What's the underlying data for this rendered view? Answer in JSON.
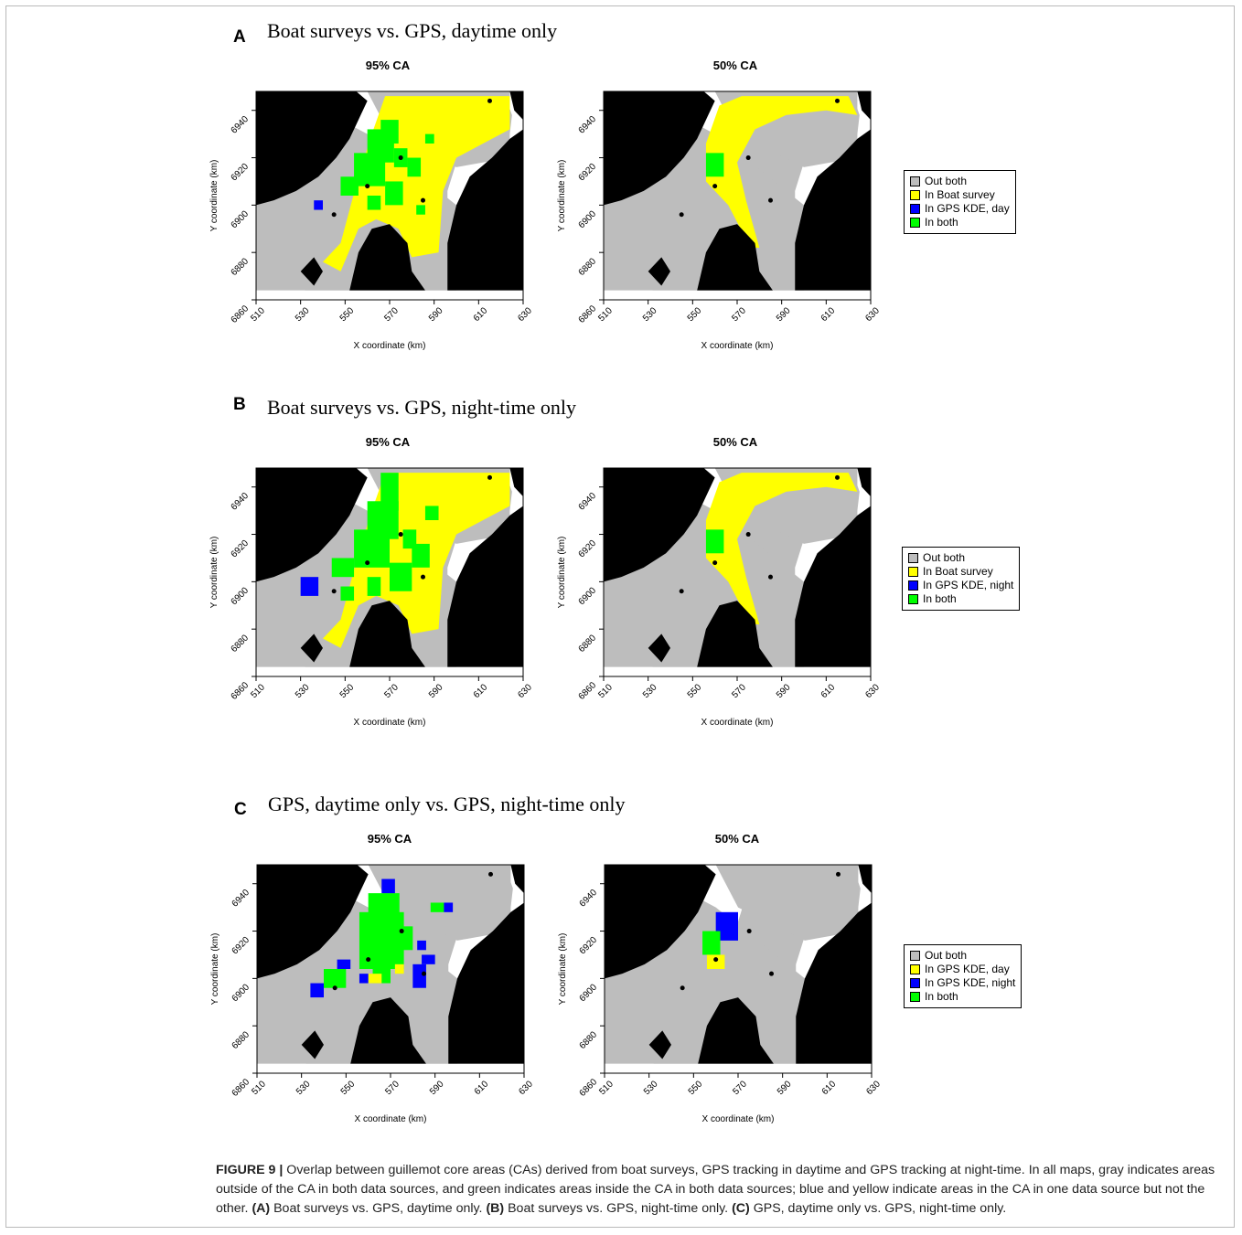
{
  "panels": [
    {
      "letter": "A",
      "title": "Boat surveys vs. GPS, daytime only",
      "maps": [
        {
          "title": "95% CA",
          "variant": "boat95",
          "gps": "day"
        },
        {
          "title": "50% CA",
          "variant": "boat50",
          "gps": "day"
        }
      ],
      "legend": [
        {
          "label": "Out both",
          "color": "#bdbdbd"
        },
        {
          "label": "In Boat survey",
          "color": "#ffff00"
        },
        {
          "label": "In GPS KDE, day",
          "color": "#0000ff"
        },
        {
          "label": "In both",
          "color": "#00ff00"
        }
      ]
    },
    {
      "letter": "B",
      "title": "Boat surveys vs. GPS, night-time only",
      "maps": [
        {
          "title": "95% CA",
          "variant": "boat95",
          "gps": "night"
        },
        {
          "title": "50% CA",
          "variant": "boat50",
          "gps": "night"
        }
      ],
      "legend": [
        {
          "label": "Out both",
          "color": "#bdbdbd"
        },
        {
          "label": "In Boat survey",
          "color": "#ffff00"
        },
        {
          "label": "In GPS KDE, night",
          "color": "#0000ff"
        },
        {
          "label": "In both",
          "color": "#00ff00"
        }
      ]
    },
    {
      "letter": "C",
      "title": "GPS, daytime only vs. GPS, night-time only",
      "maps": [
        {
          "title": "95% CA",
          "variant": "gps95",
          "gps": "both"
        },
        {
          "title": "50% CA",
          "variant": "gps50",
          "gps": "both"
        }
      ],
      "legend": [
        {
          "label": "Out both",
          "color": "#bdbdbd"
        },
        {
          "label": "In GPS KDE, day",
          "color": "#ffff00"
        },
        {
          "label": "In GPS KDE, night",
          "color": "#0000ff"
        },
        {
          "label": "In both",
          "color": "#00ff00"
        }
      ]
    }
  ],
  "axes": {
    "xlabel": "X coordinate (km)",
    "ylabel": "Y coordinate (km)",
    "x_ticks": [
      "510",
      "530",
      "550",
      "570",
      "590",
      "610",
      "630"
    ],
    "y_ticks": [
      "6860",
      "6880",
      "6900",
      "6920",
      "6940"
    ],
    "xlim": [
      510,
      630
    ],
    "ylim": [
      6860,
      6948
    ]
  },
  "colors": {
    "land": "#000000",
    "out_both": "#bdbdbd",
    "yellow": "#ffff00",
    "blue": "#0000ff",
    "green": "#00ff00"
  },
  "caption": {
    "label": "FIGURE 9 |",
    "text": " Overlap between guillemot core areas (CAs) derived from boat surveys, GPS tracking in daytime and GPS tracking at night-time. In all maps, gray indicates areas outside of the CA in both data sources, and green indicates areas inside the CA in both data sources; blue and yellow indicate areas in the CA in one data source but not the other. ",
    "a_label": "(A)",
    "a_text": " Boat surveys vs. GPS, daytime only. ",
    "b_label": "(B)",
    "b_text": " Boat surveys vs. GPS, night-time only. ",
    "c_label": "(C)",
    "c_text": " GPS, daytime only vs. GPS, night-time only."
  }
}
